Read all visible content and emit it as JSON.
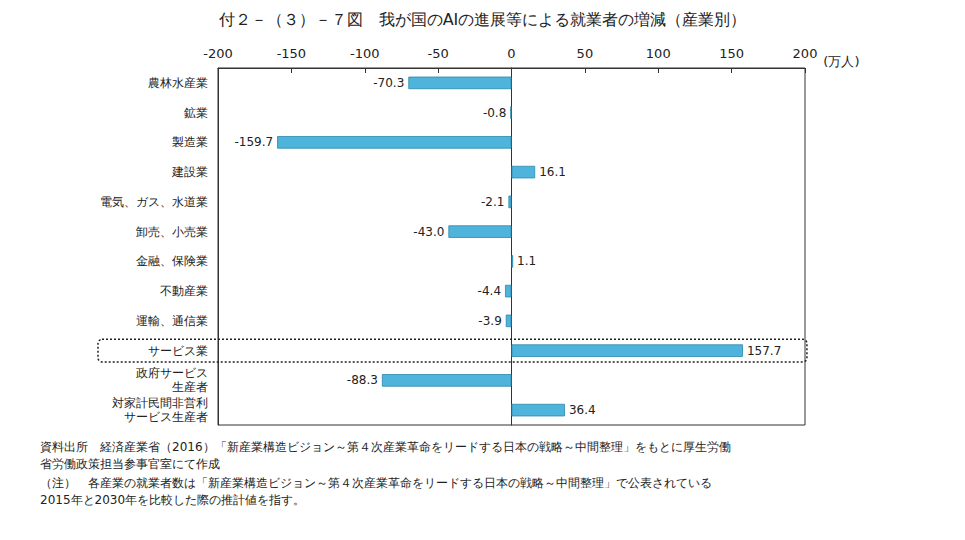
{
  "chart_data": {
    "type": "bar",
    "orientation": "horizontal",
    "title": "付２－（３）－７図　我が国のAIの進展等による就業者の増減（産業別）",
    "x_label": "(万人)",
    "categories": [
      "農林水産業",
      "鉱業",
      "製造業",
      "建設業",
      "電気、ガス、水道業",
      "卸売、小売業",
      "金融、保険業",
      "不動産業",
      "運輸、通信業",
      "サービス業",
      "政府サービス\n生産者",
      "対家計民間非営利\nサービス生産者"
    ],
    "values": [
      -70.3,
      -0.8,
      -159.7,
      16.1,
      -2.1,
      -43.0,
      1.1,
      -4.4,
      -3.9,
      157.7,
      -88.3,
      36.4
    ],
    "value_labels": [
      "-70.3",
      "-0.8",
      "-159.7",
      "16.1",
      "-2.1",
      "-43.0",
      "1.1",
      "-4.4",
      "-3.9",
      "157.7",
      "-88.3",
      "36.4"
    ],
    "color": "#4fb4dc",
    "xlim": [
      -200,
      200
    ],
    "xticks": [
      -200,
      -150,
      -100,
      -50,
      0,
      50,
      100,
      150,
      200
    ],
    "data_labels": true,
    "grid": false,
    "annotations": [
      "資料出所　経済産業省（2016）「新産業構造ビジョン～第４次産業革命をリードする日本の戦略～中間整理」をもとに厚生労働\n省労働政策担当参事官室にて作成",
      "（注）　各産業の就業者数は「新産業構造ビジョン～第４次産業革命をリードする日本の戦略～中間整理」で公表されている\n2015年と2030年を比較した際の推計値を指す。"
    ]
  }
}
